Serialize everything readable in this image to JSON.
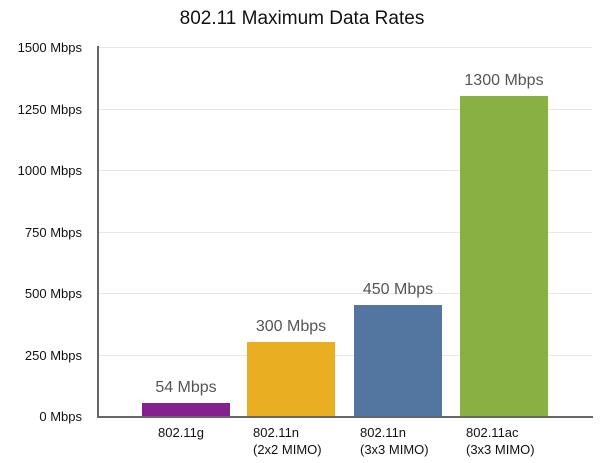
{
  "chart_data": {
    "type": "bar",
    "title": "802.11 Maximum Data Rates",
    "xlabel": "",
    "ylabel": "",
    "ylim": [
      0,
      1500
    ],
    "grid": true,
    "legend": "none",
    "y_ticks": [
      "0 Mbps",
      "250 Mbps",
      "500 Mbps",
      "750 Mbps",
      "1000 Mbps",
      "1250 Mbps",
      "1500 Mbps"
    ],
    "categories": [
      "802.11g",
      "802.11n (2x2 MIMO)",
      "802.11n (3x3 MIMO)",
      "802.11ac (3x3 MIMO)"
    ],
    "category_lines": [
      [
        "802.11g"
      ],
      [
        "802.11n",
        "(2x2 MIMO)"
      ],
      [
        "802.11n",
        "(3x3 MIMO)"
      ],
      [
        "802.11ac",
        "(3x3 MIMO)"
      ]
    ],
    "values": [
      54,
      300,
      450,
      1300
    ],
    "value_labels": [
      "54 Mbps",
      "300 Mbps",
      "450 Mbps",
      "1300 Mbps"
    ],
    "colors": [
      "#84208f",
      "#e9ae21",
      "#52769f",
      "#89b043"
    ]
  }
}
